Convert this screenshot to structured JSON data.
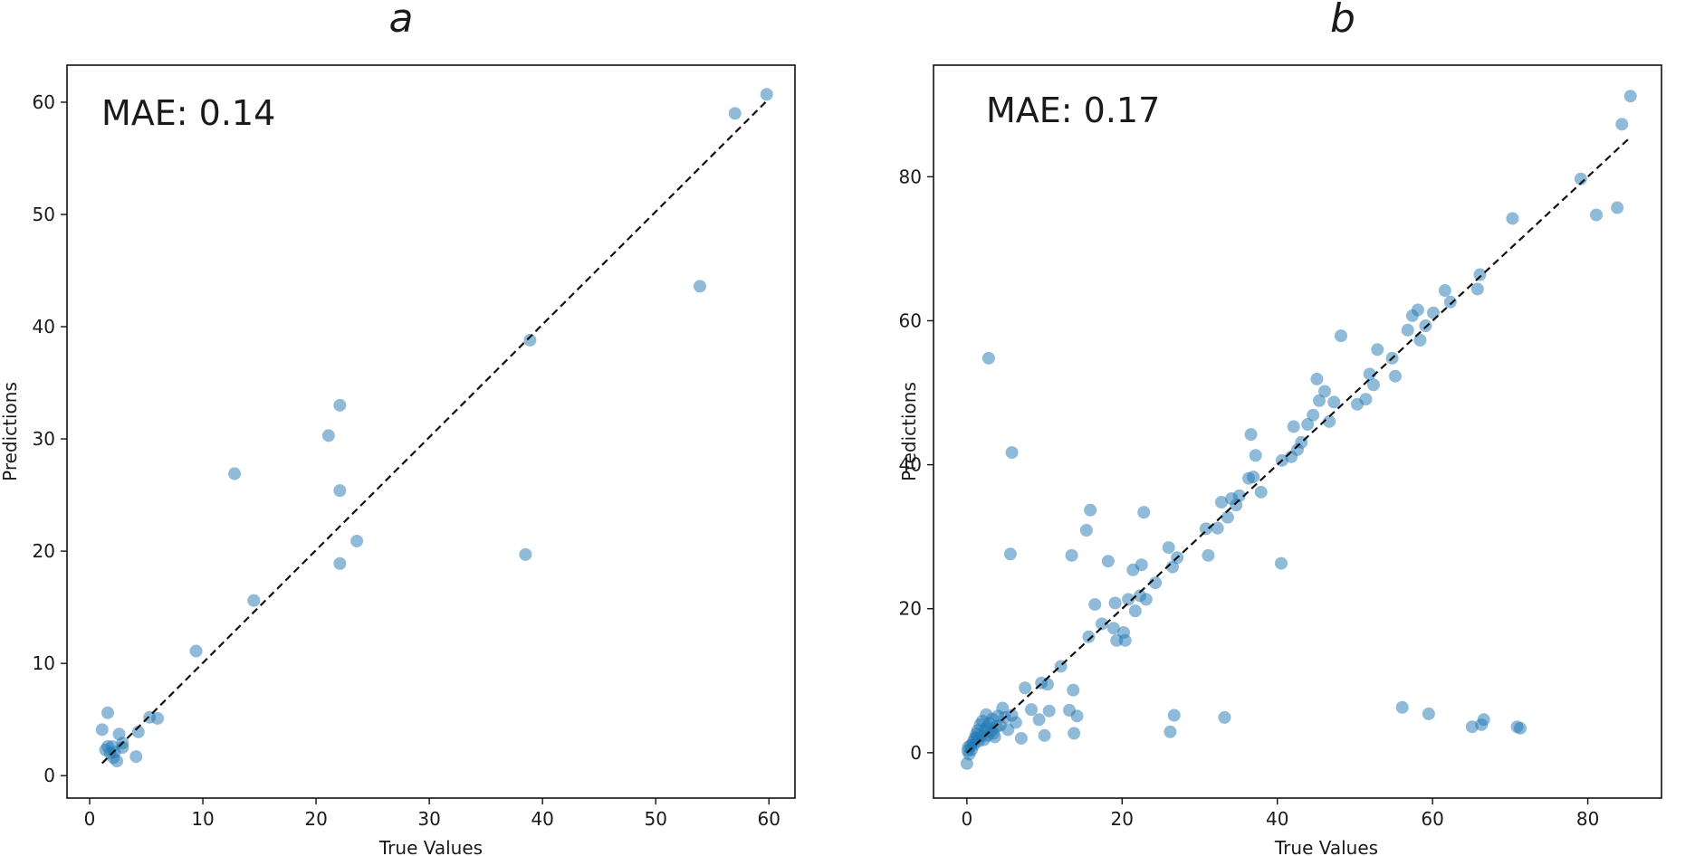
{
  "chart_data": [
    {
      "type": "scatter",
      "title": "a",
      "annotation": "MAE: 0.14",
      "xlabel": "True Values",
      "ylabel": "Predictions",
      "xlim": [
        -2.0,
        62.3
      ],
      "ylim": [
        -2.0,
        63.3
      ],
      "xticks": [
        0,
        10,
        20,
        30,
        40,
        50,
        60
      ],
      "yticks": [
        0,
        10,
        20,
        30,
        40,
        50,
        60
      ],
      "reference_line": {
        "style": "dashed",
        "from": [
          1.1,
          1.1
        ],
        "to": [
          59.7,
          60.0
        ]
      },
      "point_color": "#1f77b4",
      "points": [
        [
          1.6,
          5.6
        ],
        [
          1.1,
          4.1
        ],
        [
          1.4,
          2.3
        ],
        [
          1.6,
          2.6
        ],
        [
          1.8,
          2.0
        ],
        [
          2.0,
          2.6
        ],
        [
          2.1,
          1.6
        ],
        [
          2.2,
          2.1
        ],
        [
          2.4,
          1.3
        ],
        [
          2.6,
          3.7
        ],
        [
          2.9,
          2.5
        ],
        [
          2.9,
          2.9
        ],
        [
          4.1,
          1.7
        ],
        [
          4.3,
          3.9
        ],
        [
          5.3,
          5.2
        ],
        [
          6.0,
          5.1
        ],
        [
          9.4,
          11.1
        ],
        [
          12.8,
          26.9
        ],
        [
          14.5,
          15.6
        ],
        [
          21.1,
          30.3
        ],
        [
          22.1,
          33.0
        ],
        [
          22.1,
          25.4
        ],
        [
          22.1,
          18.9
        ],
        [
          23.6,
          20.9
        ],
        [
          38.5,
          19.7
        ],
        [
          38.9,
          38.8
        ],
        [
          53.9,
          43.6
        ],
        [
          57.0,
          59.0
        ],
        [
          59.8,
          60.7
        ]
      ]
    },
    {
      "type": "scatter",
      "title": "b",
      "annotation": "MAE: 0.17",
      "xlabel": "True Values",
      "ylabel": "Predictions",
      "xlim": [
        -4.3,
        89.5
      ],
      "ylim": [
        -6.3,
        95.5
      ],
      "xticks": [
        0,
        20,
        40,
        60,
        80
      ],
      "yticks": [
        0,
        20,
        40,
        60,
        80
      ],
      "reference_line": {
        "style": "dashed",
        "from": [
          0.0,
          0.0
        ],
        "to": [
          85.2,
          85.2
        ]
      },
      "point_color": "#1f77b4",
      "points": [
        [
          0.0,
          -1.5
        ],
        [
          0.1,
          0.3
        ],
        [
          0.2,
          0.8
        ],
        [
          0.3,
          -0.2
        ],
        [
          0.5,
          1.0
        ],
        [
          0.6,
          0.4
        ],
        [
          0.8,
          1.5
        ],
        [
          1.0,
          2.0
        ],
        [
          1.2,
          2.6
        ],
        [
          1.4,
          3.1
        ],
        [
          1.5,
          1.6
        ],
        [
          1.7,
          3.9
        ],
        [
          1.9,
          2.3
        ],
        [
          2.0,
          4.4
        ],
        [
          2.2,
          1.8
        ],
        [
          2.4,
          3.3
        ],
        [
          2.5,
          5.3
        ],
        [
          2.7,
          2.4
        ],
        [
          2.9,
          4.1
        ],
        [
          3.1,
          3.0
        ],
        [
          3.3,
          4.7
        ],
        [
          3.6,
          2.2
        ],
        [
          3.8,
          3.6
        ],
        [
          4.0,
          5.1
        ],
        [
          4.3,
          3.8
        ],
        [
          4.6,
          6.2
        ],
        [
          4.9,
          4.9
        ],
        [
          5.3,
          3.2
        ],
        [
          5.8,
          5.2
        ],
        [
          6.3,
          4.2
        ],
        [
          1.3,
          2.2
        ],
        [
          2.6,
          3.6
        ],
        [
          0.9,
          1.1
        ],
        [
          3.4,
          2.7
        ],
        [
          2.8,
          54.8
        ],
        [
          5.8,
          41.7
        ],
        [
          5.6,
          27.6
        ],
        [
          7.0,
          2.0
        ],
        [
          7.5,
          9.0
        ],
        [
          8.3,
          6.0
        ],
        [
          9.3,
          4.6
        ],
        [
          9.6,
          9.7
        ],
        [
          10.0,
          2.4
        ],
        [
          10.4,
          9.5
        ],
        [
          10.6,
          5.8
        ],
        [
          12.1,
          12.0
        ],
        [
          13.2,
          5.9
        ],
        [
          13.5,
          27.4
        ],
        [
          13.7,
          8.7
        ],
        [
          13.8,
          2.7
        ],
        [
          14.2,
          5.1
        ],
        [
          15.4,
          30.9
        ],
        [
          15.9,
          33.7
        ],
        [
          15.7,
          16.1
        ],
        [
          16.5,
          20.6
        ],
        [
          17.4,
          17.9
        ],
        [
          18.2,
          26.6
        ],
        [
          18.9,
          17.3
        ],
        [
          19.1,
          20.8
        ],
        [
          19.3,
          15.6
        ],
        [
          20.2,
          16.7
        ],
        [
          20.4,
          15.6
        ],
        [
          20.8,
          21.3
        ],
        [
          21.4,
          25.4
        ],
        [
          21.7,
          19.7
        ],
        [
          22.3,
          21.8
        ],
        [
          22.5,
          26.1
        ],
        [
          22.8,
          33.4
        ],
        [
          23.1,
          21.3
        ],
        [
          24.3,
          23.6
        ],
        [
          26.0,
          28.5
        ],
        [
          26.2,
          2.9
        ],
        [
          26.5,
          25.8
        ],
        [
          26.7,
          5.2
        ],
        [
          27.1,
          27.1
        ],
        [
          30.8,
          31.1
        ],
        [
          31.1,
          27.4
        ],
        [
          32.3,
          31.2
        ],
        [
          32.8,
          34.8
        ],
        [
          33.2,
          4.9
        ],
        [
          33.6,
          32.7
        ],
        [
          34.1,
          35.3
        ],
        [
          34.7,
          34.4
        ],
        [
          35.1,
          35.7
        ],
        [
          36.3,
          38.1
        ],
        [
          36.6,
          44.2
        ],
        [
          36.9,
          38.3
        ],
        [
          37.2,
          41.3
        ],
        [
          37.9,
          36.2
        ],
        [
          40.5,
          26.3
        ],
        [
          40.6,
          40.6
        ],
        [
          41.8,
          41.1
        ],
        [
          42.1,
          45.3
        ],
        [
          42.6,
          42.1
        ],
        [
          43.1,
          43.1
        ],
        [
          43.9,
          45.6
        ],
        [
          44.6,
          46.9
        ],
        [
          45.1,
          51.9
        ],
        [
          45.4,
          48.9
        ],
        [
          46.1,
          50.2
        ],
        [
          46.7,
          46.0
        ],
        [
          47.3,
          48.7
        ],
        [
          48.2,
          57.9
        ],
        [
          50.3,
          48.4
        ],
        [
          51.4,
          49.1
        ],
        [
          51.9,
          52.6
        ],
        [
          52.4,
          51.1
        ],
        [
          52.9,
          56.0
        ],
        [
          54.8,
          54.8
        ],
        [
          55.2,
          52.3
        ],
        [
          56.1,
          6.3
        ],
        [
          56.8,
          58.7
        ],
        [
          57.4,
          60.7
        ],
        [
          58.1,
          61.5
        ],
        [
          58.4,
          57.3
        ],
        [
          59.1,
          59.3
        ],
        [
          59.5,
          5.4
        ],
        [
          60.1,
          61.1
        ],
        [
          61.6,
          64.2
        ],
        [
          62.3,
          62.6
        ],
        [
          65.1,
          3.6
        ],
        [
          65.8,
          64.4
        ],
        [
          66.1,
          66.4
        ],
        [
          66.3,
          3.9
        ],
        [
          66.6,
          4.6
        ],
        [
          70.3,
          74.2
        ],
        [
          70.9,
          3.6
        ],
        [
          71.3,
          3.4
        ],
        [
          79.1,
          79.7
        ],
        [
          81.1,
          74.7
        ],
        [
          83.8,
          75.7
        ],
        [
          84.4,
          87.3
        ],
        [
          85.5,
          91.2
        ]
      ]
    }
  ]
}
